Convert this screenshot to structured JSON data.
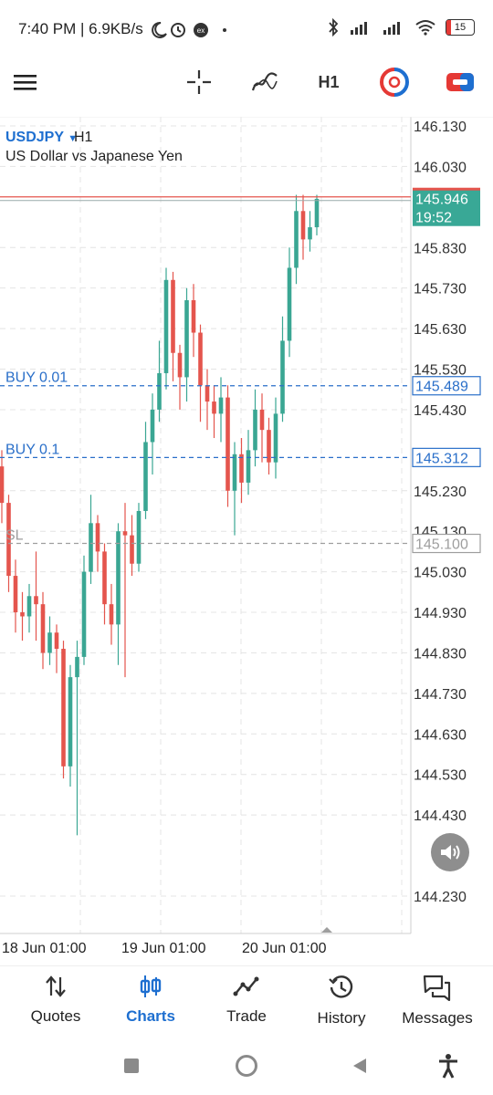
{
  "status_bar": {
    "time": "7:40 PM | 6.9KB/s",
    "battery": "15"
  },
  "toolbar": {
    "timeframe": "H1"
  },
  "chart_data": {
    "type": "candlestick",
    "symbol": "USDJPY",
    "timeframe": "H1",
    "description": "US Dollar vs Japanese Yen",
    "y_range": [
      144.15,
      146.18
    ],
    "price_ticks": [
      "146.130",
      "146.030",
      "145.830",
      "145.730",
      "145.630",
      "145.530",
      "145.430",
      "145.230",
      "145.130",
      "145.030",
      "144.930",
      "144.830",
      "144.730",
      "144.630",
      "144.530",
      "144.430",
      "144.230"
    ],
    "time_labels": [
      "18 Jun 01:00",
      "19 Jun 01:00",
      "20 Jun 01:00"
    ],
    "current_price": {
      "value": "145.946",
      "countdown": "19:52",
      "color": "#39a896"
    },
    "lines": [
      {
        "label": "BUY 0.01",
        "price": 145.489,
        "price_label": "145.489",
        "color": "#2a6fc9",
        "style": "dashed"
      },
      {
        "label": "BUY 0.1",
        "price": 145.312,
        "price_label": "145.312",
        "color": "#2a6fc9",
        "style": "dashed"
      },
      {
        "label": "SL",
        "price": 145.1,
        "price_label": "145.100",
        "color": "#9e9e9e",
        "style": "dashed"
      }
    ],
    "candles": [
      [
        145.29,
        145.2,
        145.33,
        145.15
      ],
      [
        145.2,
        145.02,
        145.22,
        144.98
      ],
      [
        145.02,
        144.93,
        145.06,
        144.88
      ],
      [
        144.93,
        144.92,
        144.98,
        144.86
      ],
      [
        144.92,
        144.97,
        145.0,
        144.88
      ],
      [
        144.97,
        144.95,
        145.08,
        144.86
      ],
      [
        144.95,
        144.83,
        144.98,
        144.79
      ],
      [
        144.83,
        144.88,
        144.92,
        144.8
      ],
      [
        144.88,
        144.84,
        144.9,
        144.78
      ],
      [
        144.84,
        144.55,
        144.86,
        144.52
      ],
      [
        144.55,
        144.77,
        144.8,
        144.5
      ],
      [
        144.77,
        144.82,
        144.86,
        144.38
      ],
      [
        144.82,
        145.03,
        145.07,
        144.8
      ],
      [
        145.03,
        145.15,
        145.22,
        145.0
      ],
      [
        145.15,
        145.08,
        145.17,
        145.03
      ],
      [
        145.08,
        144.95,
        145.1,
        144.9
      ],
      [
        144.95,
        144.9,
        145.0,
        144.85
      ],
      [
        144.9,
        145.13,
        145.15,
        144.8
      ],
      [
        145.13,
        145.12,
        145.2,
        144.77
      ],
      [
        145.12,
        145.05,
        145.17,
        145.02
      ],
      [
        145.05,
        145.18,
        145.2,
        145.03
      ],
      [
        145.18,
        145.35,
        145.4,
        145.16
      ],
      [
        145.35,
        145.43,
        145.47,
        145.27
      ],
      [
        145.43,
        145.52,
        145.6,
        145.4
      ],
      [
        145.52,
        145.75,
        145.78,
        145.48
      ],
      [
        145.75,
        145.57,
        145.77,
        145.5
      ],
      [
        145.57,
        145.51,
        145.59,
        145.43
      ],
      [
        145.51,
        145.7,
        145.73,
        145.45
      ],
      [
        145.7,
        145.62,
        145.74,
        145.56
      ],
      [
        145.62,
        145.49,
        145.64,
        145.4
      ],
      [
        145.49,
        145.45,
        145.53,
        145.38
      ],
      [
        145.45,
        145.42,
        145.49,
        145.36
      ],
      [
        145.42,
        145.46,
        145.51,
        145.35
      ],
      [
        145.46,
        145.23,
        145.49,
        145.19
      ],
      [
        145.23,
        145.32,
        145.35,
        145.12
      ],
      [
        145.32,
        145.25,
        145.36,
        145.2
      ],
      [
        145.25,
        145.33,
        145.38,
        145.22
      ],
      [
        145.33,
        145.43,
        145.48,
        145.29
      ],
      [
        145.43,
        145.38,
        145.47,
        145.3
      ],
      [
        145.38,
        145.3,
        145.41,
        145.27
      ],
      [
        145.3,
        145.42,
        145.46,
        145.26
      ],
      [
        145.42,
        145.6,
        145.66,
        145.4
      ],
      [
        145.6,
        145.78,
        145.83,
        145.56
      ],
      [
        145.78,
        145.92,
        145.96,
        145.74
      ],
      [
        145.92,
        145.85,
        145.96,
        145.8
      ],
      [
        145.85,
        145.88,
        145.92,
        145.82
      ],
      [
        145.88,
        145.95,
        145.96,
        145.86
      ]
    ]
  },
  "nav": {
    "items": [
      {
        "label": "Quotes"
      },
      {
        "label": "Charts"
      },
      {
        "label": "Trade"
      },
      {
        "label": "History"
      },
      {
        "label": "Messages"
      }
    ]
  }
}
